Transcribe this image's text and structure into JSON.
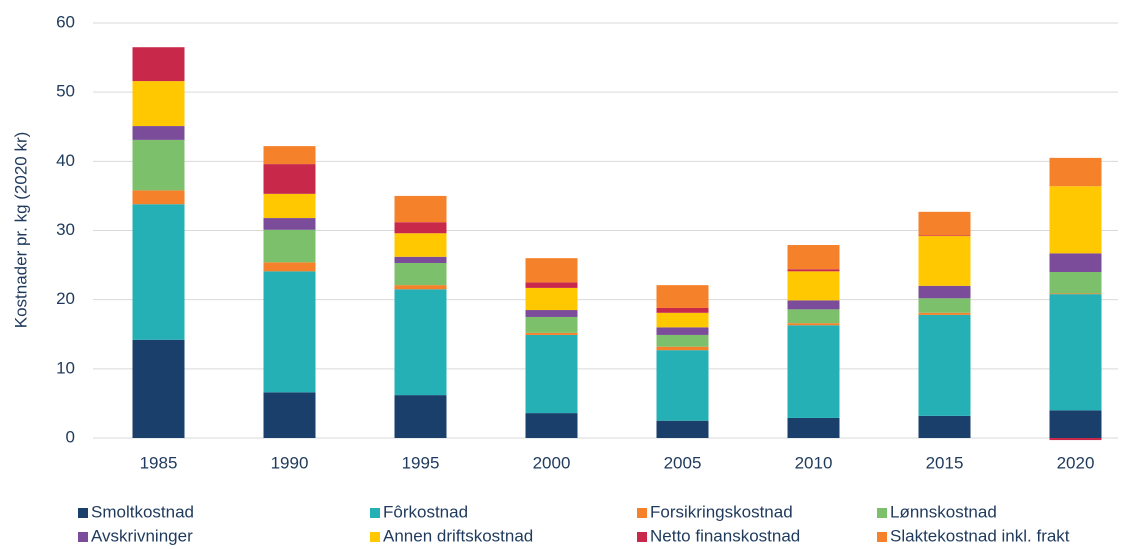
{
  "chart_data": {
    "type": "stacked_bar",
    "y_label": "Kostnader pr. kg (2020 kr)",
    "categories": [
      "1985",
      "1990",
      "1995",
      "2000",
      "2005",
      "2010",
      "2015",
      "2020"
    ],
    "series": [
      {
        "name": "Smoltkostnad",
        "color": "#1b3f6b",
        "values": [
          14.2,
          6.6,
          6.2,
          3.6,
          2.5,
          2.9,
          3.2,
          4.0
        ]
      },
      {
        "name": "Fôrkostnad",
        "color": "#25b0b5",
        "values": [
          19.6,
          17.5,
          15.3,
          11.3,
          10.2,
          13.4,
          14.6,
          16.8
        ]
      },
      {
        "name": "Forsikringskostnad",
        "color": "#f5822a",
        "values": [
          2.0,
          1.3,
          0.6,
          0.3,
          0.5,
          0.3,
          0.3,
          0.1
        ]
      },
      {
        "name": "Lønnskostnad",
        "color": "#7dc06b",
        "values": [
          7.3,
          4.7,
          3.2,
          2.3,
          1.7,
          2.0,
          2.1,
          3.1
        ]
      },
      {
        "name": "Avskrivninger",
        "color": "#7a4c9a",
        "values": [
          2.0,
          1.7,
          0.9,
          1.0,
          1.1,
          1.3,
          1.8,
          2.7
        ]
      },
      {
        "name": "Annen driftskostnad",
        "color": "#ffc800",
        "values": [
          6.5,
          3.5,
          3.4,
          3.2,
          2.1,
          4.2,
          7.2,
          9.7
        ]
      },
      {
        "name": "Netto finanskostnad",
        "color": "#c8294b",
        "values": [
          4.9,
          4.3,
          1.6,
          0.8,
          0.7,
          0.3,
          0.1,
          -0.3
        ]
      },
      {
        "name": "Slaktekostnad inkl. frakt",
        "color": "#f5822a",
        "values": [
          0,
          2.6,
          3.8,
          3.5,
          3.3,
          3.5,
          3.4,
          4.1
        ]
      }
    ],
    "ylim": [
      0,
      60
    ],
    "yticks": [
      0,
      10,
      20,
      30,
      40,
      50,
      60
    ],
    "grid": true,
    "legend": "bottom"
  }
}
